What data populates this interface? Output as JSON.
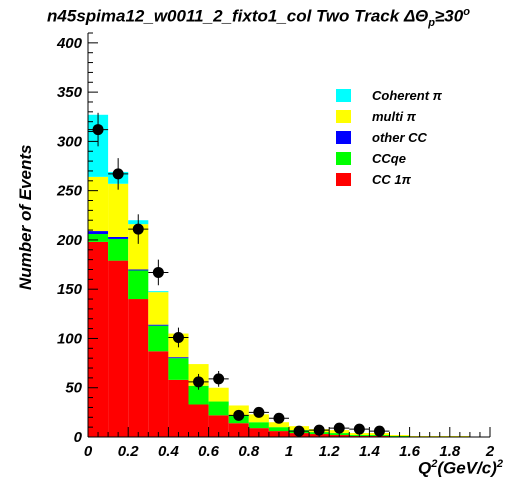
{
  "chart_data": {
    "type": "bar",
    "title": "n45spima12_w0011_2_fixto1_col Two Track ΔΘp≥30°",
    "title_parts": {
      "main": "n45spima12_w0011_2_fixto1_col Two Track ",
      "delta": "ΔΘ",
      "sub": "p",
      "ge": "≥30",
      "sup": "o"
    },
    "xlabel": "Q²(GeV/c)²",
    "xlabel_parts": {
      "q": "Q",
      "sq": "2",
      "unit": "(GeV/c)",
      "usq": "2"
    },
    "ylabel": "Number of Events",
    "xlim": [
      0,
      2
    ],
    "ylim": [
      0,
      410
    ],
    "x_ticks": [
      "0",
      "0.2",
      "0.4",
      "0.6",
      "0.8",
      "1",
      "1.2",
      "1.4",
      "1.6",
      "1.8",
      "2"
    ],
    "y_ticks": [
      "0",
      "50",
      "100",
      "150",
      "200",
      "250",
      "300",
      "350",
      "400"
    ],
    "bin_edges": [
      0,
      0.1,
      0.2,
      0.3,
      0.4,
      0.5,
      0.6,
      0.7,
      0.8,
      0.9,
      1.0,
      1.1,
      1.2,
      1.3,
      1.4,
      1.5,
      1.6,
      1.7,
      1.8,
      1.9,
      2.0
    ],
    "stacked_series": [
      {
        "name": "CC 1π",
        "color": "#ff0000",
        "values": [
          198,
          179,
          140,
          87,
          58,
          33,
          22,
          14,
          9,
          6,
          4,
          3,
          2,
          1,
          1,
          0,
          0,
          0,
          0,
          0
        ]
      },
      {
        "name": "CCqe",
        "color": "#00ff00",
        "values": [
          8,
          22,
          29,
          26,
          22,
          19,
          14,
          8,
          6,
          4,
          3,
          2,
          2,
          1,
          1,
          1,
          0,
          0,
          0,
          0
        ]
      },
      {
        "name": "other CC",
        "color": "#0000ff",
        "values": [
          3,
          2,
          1,
          1,
          1,
          0,
          0,
          0,
          0,
          0,
          0,
          0,
          0,
          0,
          0,
          0,
          0,
          0,
          0,
          0
        ]
      },
      {
        "name": "multi π",
        "color": "#ffff00",
        "values": [
          55,
          54,
          46,
          33,
          24,
          22,
          14,
          10,
          8,
          5,
          4,
          3,
          3,
          2,
          2,
          1,
          1,
          1,
          1,
          0
        ]
      },
      {
        "name": "Coherent π",
        "color": "#00ffff",
        "values": [
          63,
          12,
          4,
          1,
          0,
          0,
          0,
          0,
          0,
          0,
          0,
          0,
          0,
          0,
          0,
          0,
          0,
          0,
          0,
          0
        ]
      }
    ],
    "data_points": {
      "x": [
        0.05,
        0.15,
        0.25,
        0.35,
        0.45,
        0.55,
        0.65,
        0.75,
        0.85,
        0.95,
        1.05,
        1.15,
        1.25,
        1.35,
        1.45
      ],
      "y": [
        312,
        267,
        211,
        167,
        101,
        56,
        59,
        22,
        25,
        19,
        6,
        7,
        9,
        8,
        6
      ],
      "err": [
        17,
        16,
        15,
        13,
        10,
        8,
        8,
        5,
        5,
        4,
        3,
        3,
        3,
        3,
        2
      ]
    },
    "legend": [
      {
        "label": "Coherent π",
        "color": "#00ffff"
      },
      {
        "label": "multi π",
        "color": "#ffff00"
      },
      {
        "label": "other CC",
        "color": "#0000ff"
      },
      {
        "label": "CCqe",
        "color": "#00ff00"
      },
      {
        "label": "CC 1π",
        "color": "#ff0000"
      }
    ],
    "legend_position": "top-right",
    "grid": false
  }
}
